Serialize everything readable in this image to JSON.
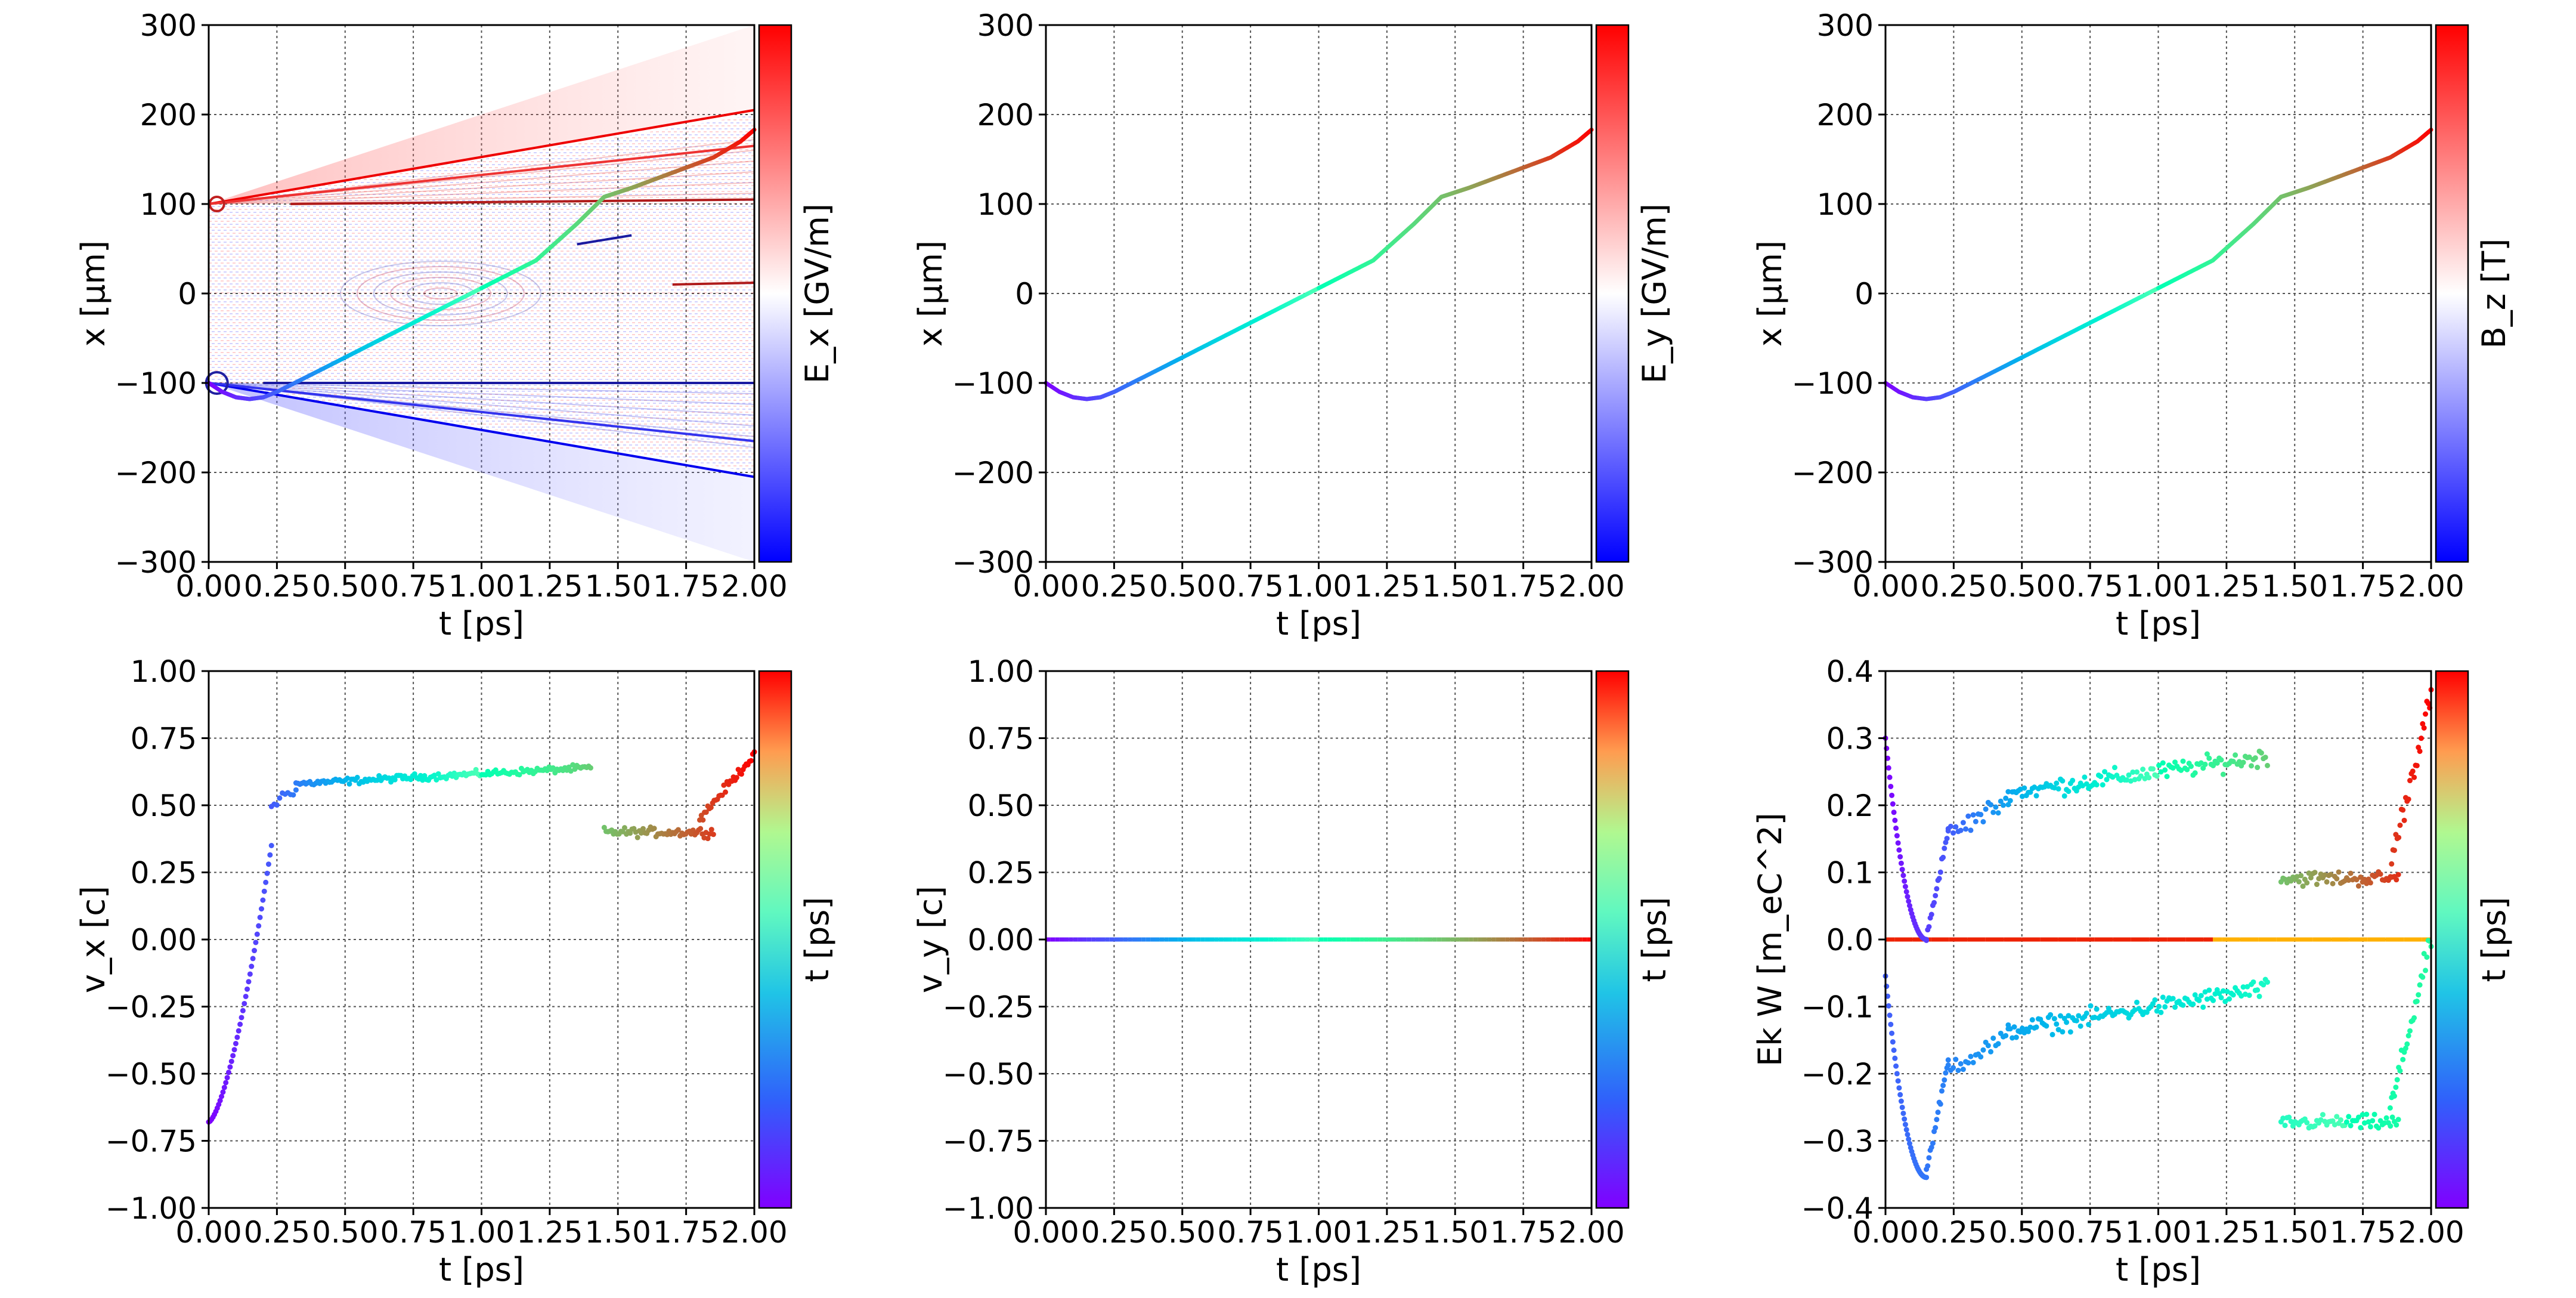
{
  "figure": {
    "layout": "2 rows x 3 columns"
  },
  "chart_data": [
    {
      "id": "x-vs-t-Ex",
      "type": "line",
      "background_field": "heatmap of E_x (diverging blue-white-red)",
      "xlabel": "t  [ps]",
      "ylabel": "x  [μm]",
      "colorbar_label": "E_x  [GV/m]",
      "colorbar": "bwr",
      "xlim": [
        0.0,
        2.0
      ],
      "ylim": [
        -300,
        300
      ],
      "xticks": [
        "0.00",
        "0.25",
        "0.50",
        "0.75",
        "1.00",
        "1.25",
        "1.50",
        "1.75",
        "2.00"
      ],
      "yticks": [
        "−300",
        "−200",
        "−100",
        "0",
        "100",
        "200",
        "300"
      ],
      "trajectory_colormap": "rainbow",
      "x": [
        0.0,
        0.05,
        0.1,
        0.15,
        0.2,
        0.25,
        0.4,
        0.6,
        0.8,
        1.0,
        1.2,
        1.35,
        1.45,
        1.55,
        1.7,
        1.85,
        1.95,
        2.0
      ],
      "y": [
        -100,
        -110,
        -116,
        -118,
        -116,
        -110,
        -87,
        -56,
        -25,
        6,
        37,
        78,
        108,
        118,
        135,
        152,
        170,
        183
      ],
      "field_lines": [
        {
          "x": [
            0.0,
            2.0
          ],
          "y": [
            100,
            205
          ],
          "color": "#ee0000"
        },
        {
          "x": [
            0.0,
            2.0
          ],
          "y": [
            -100,
            -205
          ],
          "color": "#0000ee"
        },
        {
          "x": [
            0.0,
            2.0
          ],
          "y": [
            100,
            165
          ],
          "color": "#ee3333"
        },
        {
          "x": [
            0.0,
            2.0
          ],
          "y": [
            -100,
            -165
          ],
          "color": "#3333ee"
        },
        {
          "x": [
            0.2,
            2.0
          ],
          "y": [
            -100,
            -100
          ],
          "color": "#1a1aa0"
        },
        {
          "x": [
            0.3,
            2.0
          ],
          "y": [
            100,
            105
          ],
          "color": "#b01a1a"
        },
        {
          "x": [
            1.35,
            1.55
          ],
          "y": [
            55,
            65
          ],
          "color": "#1a1aa0"
        },
        {
          "x": [
            1.7,
            2.0
          ],
          "y": [
            10,
            12
          ],
          "color": "#b01a1a"
        }
      ]
    },
    {
      "id": "x-vs-t-Ey",
      "type": "line",
      "xlabel": "t  [ps]",
      "ylabel": "x  [μm]",
      "colorbar_label": "E_y  [GV/m]",
      "colorbar": "bwr",
      "xlim": [
        0.0,
        2.0
      ],
      "ylim": [
        -300,
        300
      ],
      "xticks": [
        "0.00",
        "0.25",
        "0.50",
        "0.75",
        "1.00",
        "1.25",
        "1.50",
        "1.75",
        "2.00"
      ],
      "yticks": [
        "−300",
        "−200",
        "−100",
        "0",
        "100",
        "200",
        "300"
      ],
      "trajectory_colormap": "rainbow",
      "x": [
        0.0,
        0.05,
        0.1,
        0.15,
        0.2,
        0.25,
        0.4,
        0.6,
        0.8,
        1.0,
        1.2,
        1.35,
        1.45,
        1.55,
        1.7,
        1.85,
        1.95,
        2.0
      ],
      "y": [
        -100,
        -110,
        -116,
        -118,
        -116,
        -110,
        -87,
        -56,
        -25,
        6,
        37,
        78,
        108,
        118,
        135,
        152,
        170,
        183
      ]
    },
    {
      "id": "x-vs-t-Bz",
      "type": "line",
      "xlabel": "t  [ps]",
      "ylabel": "x  [μm]",
      "colorbar_label": "B_z  [T]",
      "colorbar": "bwr",
      "xlim": [
        0.0,
        2.0
      ],
      "ylim": [
        -300,
        300
      ],
      "xticks": [
        "0.00",
        "0.25",
        "0.50",
        "0.75",
        "1.00",
        "1.25",
        "1.50",
        "1.75",
        "2.00"
      ],
      "yticks": [
        "−300",
        "−200",
        "−100",
        "0",
        "100",
        "200",
        "300"
      ],
      "trajectory_colormap": "rainbow",
      "x": [
        0.0,
        0.05,
        0.1,
        0.15,
        0.2,
        0.25,
        0.4,
        0.6,
        0.8,
        1.0,
        1.2,
        1.35,
        1.45,
        1.55,
        1.7,
        1.85,
        1.95,
        2.0
      ],
      "y": [
        -100,
        -110,
        -116,
        -118,
        -116,
        -110,
        -87,
        -56,
        -25,
        6,
        37,
        78,
        108,
        118,
        135,
        152,
        170,
        183
      ]
    },
    {
      "id": "vx-vs-t",
      "type": "scatter",
      "xlabel": "t  [ps]",
      "ylabel": "v_x [c]",
      "colorbar_label": "t  [ps]",
      "colorbar": "rainbow",
      "xlim": [
        0.0,
        2.0
      ],
      "ylim": [
        -1.0,
        1.0
      ],
      "xticks": [
        "0.00",
        "0.25",
        "0.50",
        "0.75",
        "1.00",
        "1.25",
        "1.50",
        "1.75",
        "2.00"
      ],
      "yticks": [
        "−1.00",
        "−0.75",
        "−0.50",
        "−0.25",
        "0.00",
        "0.25",
        "0.50",
        "0.75",
        "1.00"
      ],
      "segments": [
        {
          "t0": 0.0,
          "t1": 0.23,
          "n": 45,
          "v0": -0.68,
          "v1": 0.35,
          "curve": 1.5,
          "noise": 0.0
        },
        {
          "t0": 0.23,
          "t1": 0.32,
          "n": 10,
          "v0": 0.5,
          "v1": 0.57,
          "noise": 0.04
        },
        {
          "t0": 0.32,
          "t1": 1.4,
          "n": 150,
          "v0": 0.58,
          "v1": 0.64,
          "noise": 0.018
        },
        {
          "t0": 1.45,
          "t1": 1.85,
          "n": 60,
          "v0": 0.4,
          "v1": 0.4,
          "noise": 0.025
        },
        {
          "t0": 1.8,
          "t1": 2.0,
          "n": 35,
          "v0": 0.45,
          "v1": 0.69,
          "noise": 0.025
        }
      ]
    },
    {
      "id": "vy-vs-t",
      "type": "scatter",
      "xlabel": "t  [ps]",
      "ylabel": "v_y [c]",
      "colorbar_label": "t  [ps]",
      "colorbar": "rainbow",
      "xlim": [
        0.0,
        2.0
      ],
      "ylim": [
        -1.0,
        1.0
      ],
      "xticks": [
        "0.00",
        "0.25",
        "0.50",
        "0.75",
        "1.00",
        "1.25",
        "1.50",
        "1.75",
        "2.00"
      ],
      "yticks": [
        "−1.00",
        "−0.75",
        "−0.50",
        "−0.25",
        "0.00",
        "0.25",
        "0.50",
        "0.75",
        "1.00"
      ],
      "constant_value": 0.0
    },
    {
      "id": "ekw-vs-t",
      "type": "scatter",
      "xlabel": "t  [ps]",
      "ylabel": "Ek W [m_eC^2]",
      "colorbar_label": "t  [ps]",
      "colorbar": "rainbow",
      "xlim": [
        0.0,
        2.0
      ],
      "ylim": [
        -0.44,
        0.44
      ],
      "xticks": [
        "0.00",
        "0.25",
        "0.50",
        "0.75",
        "1.00",
        "1.25",
        "1.50",
        "1.75",
        "2.00"
      ],
      "yticks": [
        "−0.4",
        "−0.3",
        "−0.2",
        "−0.1",
        "0.0",
        "0.1",
        "0.2",
        "0.3",
        "0.4"
      ],
      "ek_segments": [
        {
          "t0": 0.0,
          "t1": 0.15,
          "n": 40,
          "shape": "dip",
          "v0": 0.33,
          "vmin": 0.0,
          "v1": 0.0
        },
        {
          "t0": 0.15,
          "t1": 0.23,
          "n": 18,
          "v0": 0.0,
          "v1": 0.18,
          "noise": 0.01
        },
        {
          "t0": 0.23,
          "t1": 0.45,
          "n": 25,
          "v0": 0.17,
          "v1": 0.23,
          "noise": 0.025
        },
        {
          "t0": 0.45,
          "t1": 1.4,
          "n": 130,
          "v0": 0.24,
          "v1": 0.3,
          "noise": 0.022
        },
        {
          "t0": 1.45,
          "t1": 1.88,
          "n": 60,
          "v0": 0.1,
          "v1": 0.1,
          "noise": 0.018
        },
        {
          "t0": 1.85,
          "t1": 2.0,
          "n": 30,
          "v0": 0.12,
          "v1": 0.4,
          "noise": 0.03
        }
      ],
      "w_segments": [
        {
          "t0": 0.0,
          "t1": 0.15,
          "n": 40,
          "shape": "dip",
          "v0": -0.06,
          "vmin": -0.39,
          "v1": -0.39
        },
        {
          "t0": 0.15,
          "t1": 0.23,
          "n": 18,
          "v0": -0.38,
          "v1": -0.2,
          "noise": 0.01
        },
        {
          "t0": 0.23,
          "t1": 0.45,
          "n": 25,
          "v0": -0.21,
          "v1": -0.16,
          "noise": 0.025
        },
        {
          "t0": 0.45,
          "t1": 1.4,
          "n": 130,
          "v0": -0.15,
          "v1": -0.08,
          "noise": 0.022
        },
        {
          "t0": 1.45,
          "t1": 1.88,
          "n": 60,
          "v0": -0.3,
          "v1": -0.3,
          "noise": 0.018
        },
        {
          "t0": 1.85,
          "t1": 2.0,
          "n": 30,
          "v0": -0.28,
          "v1": -0.0,
          "noise": 0.03
        }
      ],
      "zero_line": 0.0
    }
  ]
}
